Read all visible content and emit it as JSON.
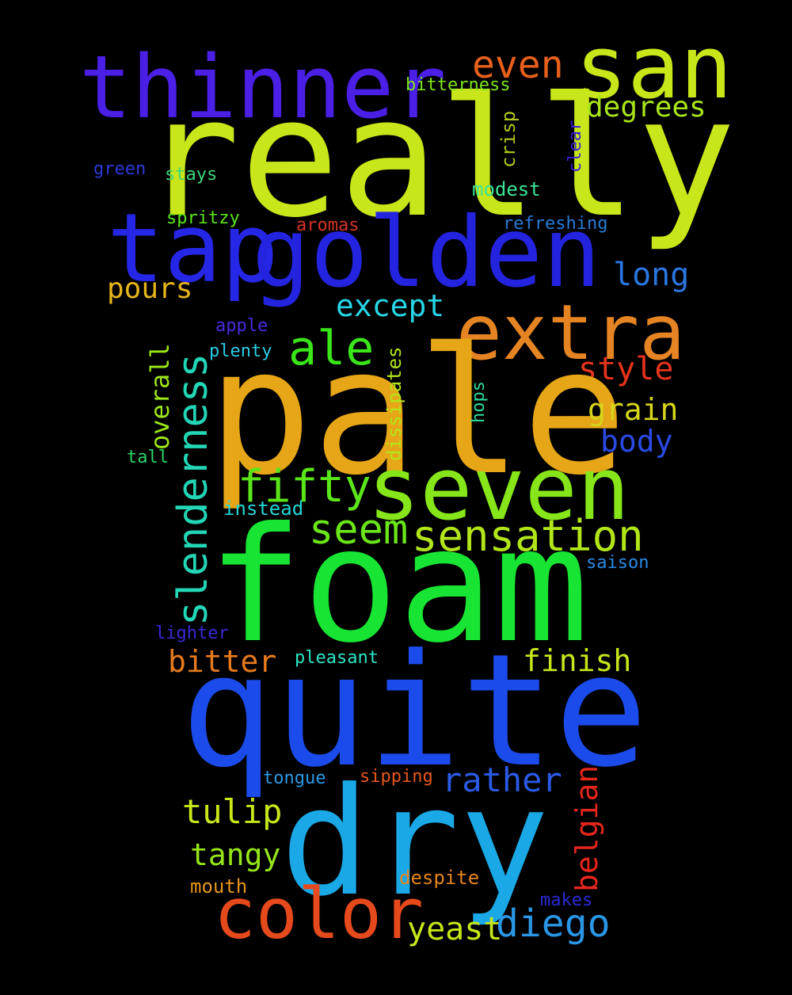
{
  "words": {
    "really": {
      "text": "really",
      "color": "#C8E619"
    },
    "pale": {
      "text": "pale",
      "color": "#E6A617"
    },
    "foam": {
      "text": "foam",
      "color": "#18E533"
    },
    "quite": {
      "text": "quite",
      "color": "#1B4CEB"
    },
    "dry": {
      "text": "dry",
      "color": "#1AA9E6"
    },
    "thinner": {
      "text": "thinner",
      "color": "#4A1FE6"
    },
    "san": {
      "text": "san",
      "color": "#C8E619"
    },
    "tap": {
      "text": "tap",
      "color": "#2626E6"
    },
    "golden": {
      "text": "golden",
      "color": "#2424E0"
    },
    "extra": {
      "text": "extra",
      "color": "#E68423"
    },
    "seven": {
      "text": "seven",
      "color": "#86E619"
    },
    "color": {
      "text": "color",
      "color": "#E64A1C"
    },
    "slenderness": {
      "text": "slenderness",
      "color": "#22D6B6"
    },
    "even": {
      "text": "even",
      "color": "#E6601C"
    },
    "degrees": {
      "text": "degrees",
      "color": "#A8E619"
    },
    "bitterness": {
      "text": "bitterness",
      "color": "#7CE619"
    },
    "crisp": {
      "text": "crisp",
      "color": "#B2C719"
    },
    "clear": {
      "text": "clear",
      "color": "#3A1FD6"
    },
    "green": {
      "text": "green",
      "color": "#2E3AD6"
    },
    "stays": {
      "text": "stays",
      "color": "#3AD67A"
    },
    "modest": {
      "text": "modest",
      "color": "#3AE696"
    },
    "spritzy": {
      "text": "spritzy",
      "color": "#5AE619"
    },
    "aromas": {
      "text": "aromas",
      "color": "#D6342A"
    },
    "refreshing": {
      "text": "refreshing",
      "color": "#2A7AD6"
    },
    "long": {
      "text": "long",
      "color": "#2A76E0"
    },
    "pours": {
      "text": "pours",
      "color": "#E6B41C"
    },
    "except": {
      "text": "except",
      "color": "#26D6E6"
    },
    "ale": {
      "text": "ale",
      "color": "#3AE619"
    },
    "apple": {
      "text": "apple",
      "color": "#4A2AE0"
    },
    "plenty": {
      "text": "plenty",
      "color": "#2ACCE6"
    },
    "style": {
      "text": "style",
      "color": "#E6341C"
    },
    "overall": {
      "text": "overall",
      "color": "#9CE619"
    },
    "dissipates": {
      "text": "dissipates",
      "color": "#B2E619"
    },
    "hops": {
      "text": "hops",
      "color": "#2ADC9A"
    },
    "grain": {
      "text": "grain",
      "color": "#D6D61C"
    },
    "body": {
      "text": "body",
      "color": "#2A4AE6"
    },
    "tall": {
      "text": "tall",
      "color": "#2AD66A"
    },
    "fifty": {
      "text": "fifty",
      "color": "#5AE619"
    },
    "instead": {
      "text": "instead",
      "color": "#22D6D6"
    },
    "seem": {
      "text": "seem",
      "color": "#6AE619"
    },
    "sensation": {
      "text": "sensation",
      "color": "#B2E619"
    },
    "saison": {
      "text": "saison",
      "color": "#2A8AE6"
    },
    "lighter": {
      "text": "lighter",
      "color": "#3A2AD6"
    },
    "bitter": {
      "text": "bitter",
      "color": "#E67A1C"
    },
    "pleasant": {
      "text": "pleasant",
      "color": "#2AE6C6"
    },
    "finish": {
      "text": "finish",
      "color": "#C8E619"
    },
    "tongue": {
      "text": "tongue",
      "color": "#2A9AE6"
    },
    "sipping": {
      "text": "sipping",
      "color": "#E6581C"
    },
    "rather": {
      "text": "rather",
      "color": "#2A5AE6"
    },
    "belgian": {
      "text": "belgian",
      "color": "#E6261C"
    },
    "tulip": {
      "text": "tulip",
      "color": "#C8E619"
    },
    "tangy": {
      "text": "tangy",
      "color": "#96E619"
    },
    "mouth": {
      "text": "mouth",
      "color": "#E6961C"
    },
    "despite": {
      "text": "despite",
      "color": "#E6841C"
    },
    "makes": {
      "text": "makes",
      "color": "#2A2AD6"
    },
    "yeast": {
      "text": "yeast",
      "color": "#C8E619"
    },
    "diego": {
      "text": "diego",
      "color": "#2A96E6"
    }
  }
}
